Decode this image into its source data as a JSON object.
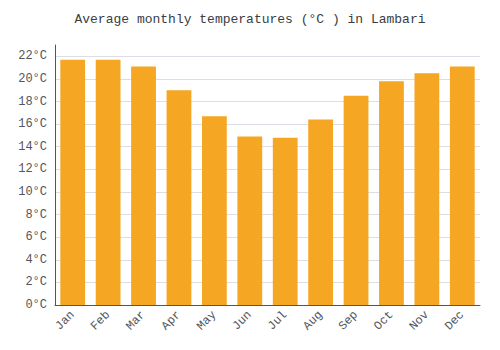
{
  "chart_data": {
    "type": "bar",
    "title": "Average monthly temperatures (°C ) in Lambari",
    "categories": [
      "Jan",
      "Feb",
      "Mar",
      "Apr",
      "May",
      "Jun",
      "Jul",
      "Aug",
      "Sep",
      "Oct",
      "Nov",
      "Dec"
    ],
    "values": [
      21.7,
      21.7,
      21.1,
      19.0,
      16.7,
      14.9,
      14.8,
      16.4,
      18.5,
      19.8,
      20.5,
      21.1
    ],
    "color": "#F5A623",
    "ylim": [
      0,
      23
    ],
    "yticks": [
      {
        "value": 0,
        "label": "0°C"
      },
      {
        "value": 2,
        "label": "2°C"
      },
      {
        "value": 4,
        "label": "4°C"
      },
      {
        "value": 6,
        "label": "6°C"
      },
      {
        "value": 8,
        "label": "8°C"
      },
      {
        "value": 10,
        "label": "10°C"
      },
      {
        "value": 12,
        "label": "12°C"
      },
      {
        "value": 14,
        "label": "14°C"
      },
      {
        "value": 16,
        "label": "16°C"
      },
      {
        "value": 18,
        "label": "18°C"
      },
      {
        "value": 20,
        "label": "20°C"
      },
      {
        "value": 22,
        "label": "22°C"
      }
    ],
    "grid": true
  }
}
